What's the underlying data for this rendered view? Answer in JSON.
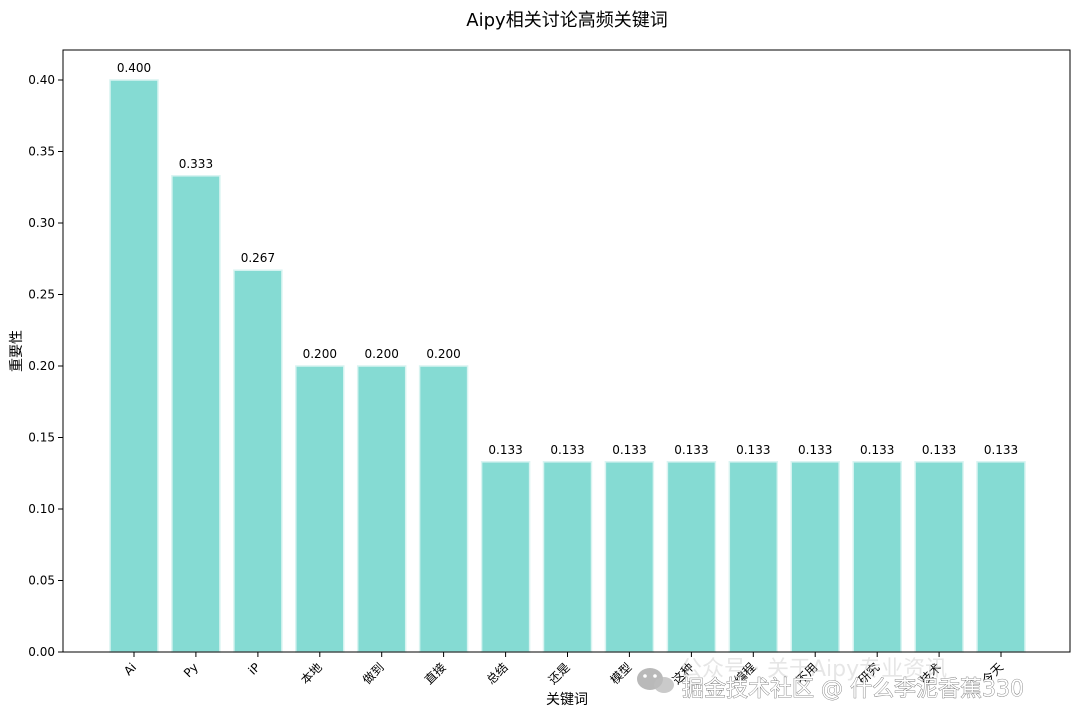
{
  "chart_data": {
    "type": "bar",
    "title": "Aipy相关讨论高频关键词",
    "xlabel": "关键词",
    "ylabel": "重要性",
    "categories": [
      "Ai",
      "Py",
      "iP",
      "本地",
      "做到",
      "直接",
      "总结",
      "还是",
      "模型",
      "这种",
      "编程",
      "不用",
      "研究",
      "技术",
      "今天"
    ],
    "values": [
      0.4,
      0.333,
      0.267,
      0.2,
      0.2,
      0.2,
      0.133,
      0.133,
      0.133,
      0.133,
      0.133,
      0.133,
      0.133,
      0.133,
      0.133
    ],
    "value_labels": [
      "0.400",
      "0.333",
      "0.267",
      "0.200",
      "0.200",
      "0.200",
      "0.133",
      "0.133",
      "0.133",
      "0.133",
      "0.133",
      "0.133",
      "0.133",
      "0.133",
      "0.133"
    ],
    "ylim": [
      0,
      0.42
    ],
    "yticks": [
      0.0,
      0.05,
      0.1,
      0.15,
      0.2,
      0.25,
      0.3,
      0.35,
      0.4
    ],
    "ytick_labels": [
      "0.00",
      "0.05",
      "0.10",
      "0.15",
      "0.20",
      "0.25",
      "0.30",
      "0.35",
      "0.40"
    ],
    "grid": false,
    "bar_color": "#85dbd3",
    "bar_edge_color": "#d9f4f1"
  },
  "watermark": {
    "line1": "公众号 · 关于Aipy专业资讯",
    "line2": "掘金技术社区 @ 什么李泥香蕉330",
    "icon": "wechat-icon"
  }
}
